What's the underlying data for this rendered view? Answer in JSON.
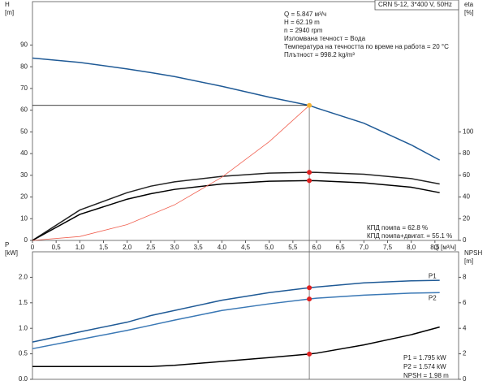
{
  "chart_data": [
    {
      "type": "line",
      "model": "CRN 5-12, 3*400 V, 50Hz",
      "info": [
        "Q = 5.847 м³/ч",
        "H = 62.19 m",
        "n = 2940 rpm",
        "Изломвана течност = Вода",
        "Температура на течността по време на работа = 20 °C",
        "Плътност = 998.2 kg/m³"
      ],
      "notes": [
        "КПД помпа = 62.8 %",
        "КПД помпа+двигат. = 55.1 %"
      ],
      "ylabel": [
        "H",
        "[m]"
      ],
      "y2label": [
        "eta",
        "[%]"
      ],
      "xlabel": "Q [м³/ч]",
      "xlim": [
        0,
        9
      ],
      "ylim": [
        0,
        110
      ],
      "y2lim": [
        0,
        220
      ],
      "xticks": [
        0,
        {
          "value": 0.5,
          "label": "0,5"
        },
        {
          "value": 1,
          "label": "1,0"
        },
        {
          "value": 1.5,
          "label": "1,5"
        },
        {
          "value": 2,
          "label": "2,0"
        },
        {
          "value": 2.5,
          "label": "2,5"
        },
        {
          "value": 3,
          "label": "3,0"
        },
        {
          "value": 3.5,
          "label": "3,5"
        },
        {
          "value": 4,
          "label": "4,0"
        },
        {
          "value": 4.5,
          "label": "4,5"
        },
        {
          "value": 5,
          "label": "5,0"
        },
        {
          "value": 5.5,
          "label": "5,5"
        },
        {
          "value": 6,
          "label": "6,0"
        },
        {
          "value": 6.5,
          "label": "6,5"
        },
        {
          "value": 7,
          "label": "7,0"
        },
        {
          "value": 7.5,
          "label": "7,5"
        },
        {
          "value": 8,
          "label": "8,0"
        },
        {
          "value": 8.5,
          "label": "8,5"
        }
      ],
      "yticks": [
        0,
        10,
        20,
        30,
        40,
        50,
        60,
        70,
        80,
        90
      ],
      "y2ticks": [
        0,
        20,
        40,
        60,
        80,
        100
      ],
      "duty_point": {
        "x": 5.847,
        "y": 62.19
      },
      "x": [
        0,
        1,
        2,
        2.5,
        3,
        4,
        5,
        5.847,
        6,
        7,
        8,
        8.6
      ],
      "series": [
        {
          "color": "#1f5a96",
          "marker_color": "#f5b335",
          "values": [
            84,
            82,
            79,
            77.3,
            75.5,
            71,
            66,
            62.19,
            61,
            54,
            44,
            37
          ]
        },
        {
          "color": "#222222",
          "marker_color": "#e02020",
          "axis": "y2",
          "values": [
            0,
            28,
            44,
            50,
            54,
            59,
            62,
            62.8,
            62.7,
            61,
            57,
            52
          ]
        },
        {
          "color": "#000000",
          "marker_color": "#e02020",
          "axis": "y2",
          "values": [
            0,
            24,
            38,
            43,
            47,
            52,
            54.5,
            55.1,
            55,
            53,
            49,
            44
          ]
        },
        {
          "color": "#f06050",
          "x": [
            0,
            1,
            2,
            3,
            4,
            5,
            5.847
          ],
          "values": [
            0,
            1.8,
            7.3,
            16.4,
            29.1,
            45.5,
            62.19
          ]
        }
      ]
    },
    {
      "type": "line",
      "notes": [
        "P1 = 1.795 kW",
        "P2 = 1.574 kW",
        "NPSH = 1.98 m"
      ],
      "ylabel": [
        "P",
        "[kW]"
      ],
      "y2label": [
        "NPSH",
        "[m]"
      ],
      "xlim": [
        0,
        9
      ],
      "ylim": [
        0,
        2.5
      ],
      "y2lim": [
        0,
        10
      ],
      "yticks": [
        {
          "value": 0,
          "label": "0.0"
        },
        {
          "value": 0.5,
          "label": "0.5"
        },
        {
          "value": 1,
          "label": "1.0"
        },
        {
          "value": 1.5,
          "label": "1.5"
        },
        {
          "value": 2,
          "label": "2.0"
        }
      ],
      "y2ticks": [
        0,
        2,
        4,
        6,
        8
      ],
      "x": [
        0,
        1,
        2,
        2.5,
        3,
        4,
        5,
        5.847,
        6,
        7,
        8,
        8.6
      ],
      "series": [
        {
          "name": "P1",
          "color": "#1f5a96",
          "marker_color": "#e02020",
          "values": [
            0.73,
            0.93,
            1.12,
            1.25,
            1.35,
            1.55,
            1.7,
            1.795,
            1.81,
            1.89,
            1.93,
            1.94
          ]
        },
        {
          "name": "P2",
          "color": "#3a78b5",
          "marker_color": "#e02020",
          "values": [
            0.6,
            0.78,
            0.96,
            1.06,
            1.16,
            1.35,
            1.48,
            1.574,
            1.59,
            1.65,
            1.69,
            1.7
          ]
        },
        {
          "color": "#000000",
          "marker_color": "#e02020",
          "axis": "y2",
          "values": [
            1,
            1,
            1,
            1,
            1.1,
            1.4,
            1.7,
            1.98,
            2.05,
            2.7,
            3.5,
            4.1
          ]
        }
      ]
    }
  ]
}
